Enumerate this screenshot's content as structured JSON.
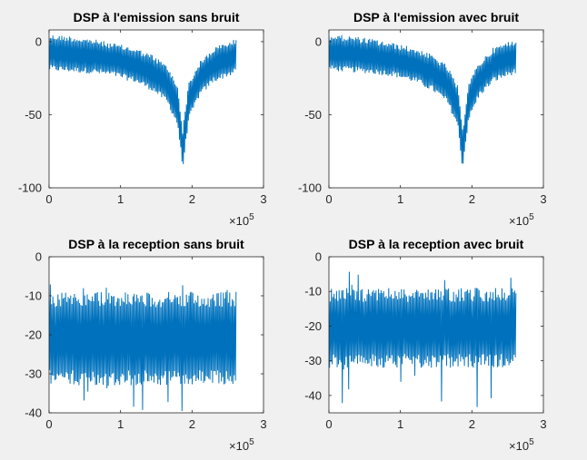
{
  "figure": {
    "background": "#f0f0f0",
    "axes_background": "#ffffff",
    "line_color": "#0072bd"
  },
  "chart_data": [
    {
      "type": "line",
      "title": "DSP à l'emission sans bruit",
      "xlabel": "",
      "ylabel": "",
      "xlim": [
        0,
        3
      ],
      "ylim": [
        -100,
        8
      ],
      "x_multiplier": "×10",
      "x_exponent": "5",
      "x_ticks": [
        0,
        1,
        2,
        3
      ],
      "y_ticks": [
        0,
        -50,
        -100
      ],
      "series": [
        {
          "x_range": [
            0,
            2.62
          ],
          "notch_x": 1.87,
          "envelope": [
            {
              "x": 0.0,
              "top": 5,
              "bottom": -20
            },
            {
              "x": 0.3,
              "top": 4,
              "bottom": -21
            },
            {
              "x": 0.6,
              "top": 2,
              "bottom": -22
            },
            {
              "x": 0.9,
              "top": -1,
              "bottom": -24
            },
            {
              "x": 1.2,
              "top": -4,
              "bottom": -28
            },
            {
              "x": 1.45,
              "top": -9,
              "bottom": -34
            },
            {
              "x": 1.65,
              "top": -16,
              "bottom": -42
            },
            {
              "x": 1.8,
              "top": -30,
              "bottom": -58
            },
            {
              "x": 1.87,
              "top": -60,
              "bottom": -88
            },
            {
              "x": 1.95,
              "top": -28,
              "bottom": -55
            },
            {
              "x": 2.1,
              "top": -14,
              "bottom": -38
            },
            {
              "x": 2.3,
              "top": -4,
              "bottom": -28
            },
            {
              "x": 2.5,
              "top": 0,
              "bottom": -24
            },
            {
              "x": 2.62,
              "top": 2,
              "bottom": -22
            }
          ]
        }
      ]
    },
    {
      "type": "line",
      "title": "DSP à l'emission avec bruit",
      "xlabel": "",
      "ylabel": "",
      "xlim": [
        0,
        3
      ],
      "ylim": [
        -100,
        8
      ],
      "x_multiplier": "×10",
      "x_exponent": "5",
      "x_ticks": [
        0,
        1,
        2,
        3
      ],
      "y_ticks": [
        0,
        -50,
        -100
      ],
      "series": [
        {
          "x_range": [
            0,
            2.62
          ],
          "notch_x": 1.87,
          "envelope": [
            {
              "x": 0.0,
              "top": 5,
              "bottom": -20
            },
            {
              "x": 0.3,
              "top": 4,
              "bottom": -21
            },
            {
              "x": 0.6,
              "top": 2,
              "bottom": -22
            },
            {
              "x": 0.9,
              "top": -1,
              "bottom": -24
            },
            {
              "x": 1.2,
              "top": -4,
              "bottom": -28
            },
            {
              "x": 1.45,
              "top": -9,
              "bottom": -34
            },
            {
              "x": 1.65,
              "top": -16,
              "bottom": -42
            },
            {
              "x": 1.8,
              "top": -30,
              "bottom": -58
            },
            {
              "x": 1.87,
              "top": -60,
              "bottom": -88
            },
            {
              "x": 1.95,
              "top": -28,
              "bottom": -55
            },
            {
              "x": 2.1,
              "top": -14,
              "bottom": -38
            },
            {
              "x": 2.3,
              "top": -4,
              "bottom": -28
            },
            {
              "x": 2.5,
              "top": 0,
              "bottom": -24
            },
            {
              "x": 2.62,
              "top": 2,
              "bottom": -22
            }
          ]
        }
      ]
    },
    {
      "type": "line",
      "title": "DSP à la reception sans bruit",
      "xlabel": "",
      "ylabel": "",
      "xlim": [
        0,
        3
      ],
      "ylim": [
        -40,
        0
      ],
      "x_multiplier": "×10",
      "x_exponent": "5",
      "x_ticks": [
        0,
        1,
        2,
        3
      ],
      "y_ticks": [
        0,
        -10,
        -20,
        -30,
        -40
      ],
      "series": [
        {
          "x_range": [
            0,
            2.62
          ],
          "band_top": -9,
          "band_bottom": -33,
          "spike_max": -7,
          "spike_min": -40
        }
      ]
    },
    {
      "type": "line",
      "title": "DSP à la reception avec bruit",
      "xlabel": "",
      "ylabel": "",
      "xlim": [
        0,
        3
      ],
      "ylim": [
        -45,
        0
      ],
      "x_multiplier": "×10",
      "x_exponent": "5",
      "x_ticks": [
        0,
        1,
        2,
        3
      ],
      "y_ticks": [
        0,
        -10,
        -20,
        -30,
        -40
      ],
      "series": [
        {
          "x_range": [
            0,
            2.62
          ],
          "band_top": -9,
          "band_bottom": -32,
          "spike_max": -4,
          "spike_min": -45
        }
      ]
    }
  ]
}
